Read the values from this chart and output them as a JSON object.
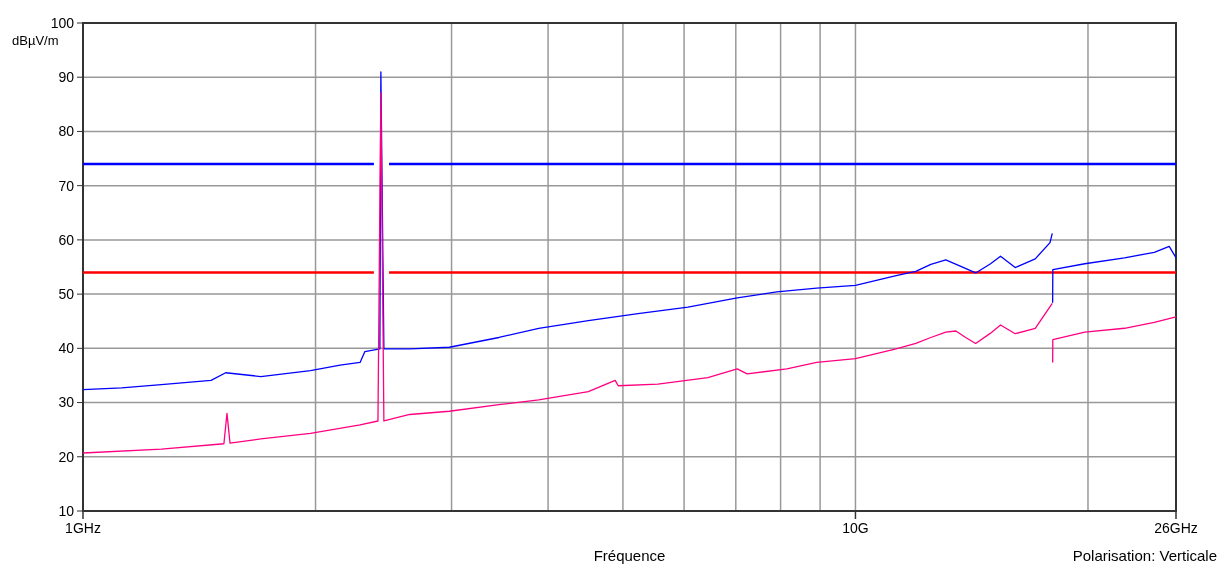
{
  "chart_data": {
    "type": "line",
    "ylabel": "dBµV/m",
    "xlabel": "Fréquence",
    "annotations": [
      "Polarisation: Verticale"
    ],
    "log": "x",
    "grid": true,
    "marker": "none",
    "line_style": "solid",
    "xlim": [
      1,
      26
    ],
    "ylim": [
      10,
      100
    ],
    "xticks": [
      {
        "value": 1,
        "label": "1GHz"
      },
      {
        "value": 2,
        "label": null
      },
      {
        "value": 3,
        "label": null
      },
      {
        "value": 4,
        "label": null
      },
      {
        "value": 5,
        "label": null
      },
      {
        "value": 6,
        "label": null
      },
      {
        "value": 7,
        "label": null
      },
      {
        "value": 8,
        "label": null
      },
      {
        "value": 9,
        "label": null
      },
      {
        "value": 10,
        "label": "10G"
      },
      {
        "value": 20,
        "label": null
      },
      {
        "value": 26,
        "label": "26GHz"
      }
    ],
    "yticks": [
      10,
      20,
      30,
      40,
      50,
      60,
      70,
      80,
      90,
      100
    ],
    "series": [
      {
        "color": "#0000ff",
        "x": [
          1,
          2.38,
          2.44,
          2.49,
          26
        ],
        "values": [
          74,
          74,
          null,
          74,
          74
        ]
      },
      {
        "color": "#ff0000",
        "x": [
          1,
          2.38,
          2.44,
          2.49,
          26
        ],
        "values": [
          54,
          54,
          null,
          54,
          54
        ]
      },
      {
        "color": "#0000ff",
        "x": [
          1,
          1.122,
          1.263,
          1.465,
          1.53,
          1.699,
          1.97,
          2.152,
          2.284,
          2.317,
          2.423,
          2.43,
          2.452,
          2.648,
          2.981,
          3.455,
          3.89,
          4.51,
          5.23,
          6.07,
          7.03,
          7.91,
          8.91,
          10,
          11.29,
          11.97,
          12.52,
          13.09,
          13.69,
          14.31,
          14.96,
          15.41,
          16.1,
          17.09,
          17.86,
          17.98,
          17.99,
          18.0,
          18.01,
          19.81,
          22.3,
          24.37,
          25.48,
          26
        ],
        "values": [
          32.4,
          32.7,
          33.3,
          34.1,
          35.5,
          34.8,
          35.9,
          36.9,
          37.4,
          39.4,
          39.9,
          91,
          39.9,
          39.9,
          40.2,
          42.0,
          43.7,
          45.1,
          46.4,
          47.6,
          49.3,
          50.4,
          51.1,
          51.6,
          53.4,
          54.2,
          55.5,
          56.3,
          55.1,
          53.9,
          55.6,
          57.0,
          54.9,
          56.5,
          59.5,
          61.2,
          null,
          48.4,
          54.5,
          55.6,
          56.7,
          57.7,
          58.8,
          56.7
        ]
      },
      {
        "color": "#ff0080",
        "x": [
          1,
          1.263,
          1.522,
          1.536,
          1.55,
          1.699,
          1.97,
          2.284,
          2.409,
          2.43,
          2.452,
          2.648,
          2.981,
          3.455,
          3.89,
          4.51,
          4.886,
          4.93,
          5.55,
          6.44,
          7.03,
          7.24,
          8.15,
          8.91,
          10,
          11.29,
          11.97,
          12.52,
          13.09,
          13.49,
          13.89,
          14.31,
          14.96,
          15.41,
          16.1,
          17.09,
          17.98,
          17.99,
          18.0,
          18.01,
          19.81,
          22.3,
          24.37,
          26
        ],
        "values": [
          20.7,
          21.4,
          22.4,
          28.0,
          22.5,
          23.3,
          24.3,
          25.9,
          26.6,
          87.1,
          26.6,
          27.8,
          28.4,
          29.6,
          30.5,
          32.0,
          34.1,
          33.1,
          33.4,
          34.6,
          36.2,
          35.3,
          36.2,
          37.4,
          38.1,
          39.9,
          40.9,
          42.0,
          43.0,
          43.2,
          42.0,
          40.9,
          42.8,
          44.3,
          42.7,
          43.7,
          48.3,
          null,
          37.4,
          41.6,
          43.0,
          43.7,
          44.8,
          45.8
        ]
      }
    ]
  }
}
